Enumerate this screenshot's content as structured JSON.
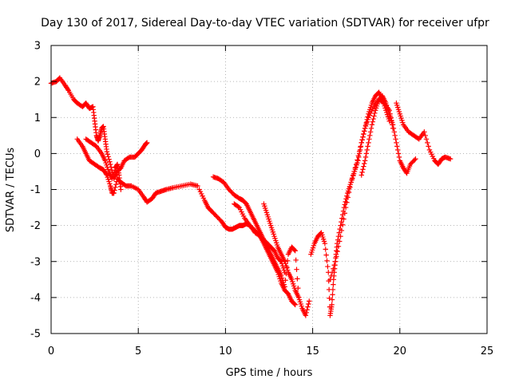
{
  "chart_data": {
    "type": "scatter",
    "title": "Day 130 of 2017, Sidereal Day-to-day VTEC variation (SDTVAR) for receiver ufpr",
    "xlabel": "GPS time / hours",
    "ylabel": "SDTVAR / TECUs",
    "xlim": [
      0,
      25
    ],
    "ylim": [
      -5,
      3
    ],
    "xticks": [
      "0",
      "5",
      "10",
      "15",
      "20",
      "25"
    ],
    "yticks": [
      "-5",
      "-4",
      "-3",
      "-2",
      "-1",
      "0",
      "1",
      "2",
      "3"
    ],
    "grid": true,
    "marker": "+",
    "color": "#ff0000",
    "series": [
      {
        "x": [
          0.0,
          0.3,
          0.5,
          0.8,
          1.0,
          1.3,
          1.5,
          1.8,
          2.0,
          2.2,
          2.4,
          2.5,
          2.6,
          2.7,
          2.8,
          2.9,
          3.0,
          3.1,
          3.2,
          3.4,
          3.6,
          3.8,
          4.0,
          4.2,
          4.5,
          4.8,
          5.0,
          5.2,
          5.4,
          5.5
        ],
        "y": [
          1.95,
          2.0,
          2.1,
          1.9,
          1.75,
          1.5,
          1.4,
          1.3,
          1.4,
          1.25,
          1.3,
          0.9,
          0.5,
          0.35,
          0.5,
          0.7,
          0.75,
          0.4,
          0.05,
          -0.3,
          -0.7,
          -0.5,
          -0.4,
          -0.2,
          -0.1,
          -0.1,
          0.0,
          0.1,
          0.25,
          0.3
        ]
      },
      {
        "x": [
          1.5,
          1.8,
          2.0,
          2.2,
          2.5,
          2.8,
          3.0,
          3.2,
          3.4,
          3.5,
          3.6,
          3.8,
          4.0,
          4.3,
          4.6,
          5.0,
          5.3,
          5.5,
          5.8,
          6.0,
          6.3,
          6.6,
          7.0,
          7.5,
          8.0,
          8.4
        ],
        "y": [
          0.4,
          0.2,
          0.0,
          -0.2,
          -0.3,
          -0.4,
          -0.45,
          -0.6,
          -0.9,
          -1.1,
          -1.1,
          -0.7,
          -0.8,
          -0.9,
          -0.9,
          -1.0,
          -1.2,
          -1.35,
          -1.25,
          -1.1,
          -1.05,
          -1.0,
          -0.95,
          -0.9,
          -0.85,
          -0.9
        ]
      },
      {
        "x": [
          2.0,
          2.3,
          2.6,
          2.9,
          3.1,
          3.3,
          3.5,
          3.7,
          3.8,
          3.9,
          4.0
        ],
        "y": [
          0.4,
          0.3,
          0.2,
          0.0,
          -0.2,
          -0.5,
          -0.7,
          -0.4,
          -0.3,
          -0.6,
          -1.0
        ]
      },
      {
        "x": [
          8.5,
          8.8,
          9.0,
          9.2,
          9.5,
          9.8,
          10.0,
          10.2,
          10.4,
          10.6,
          10.8,
          11.0,
          11.2,
          11.4,
          11.6,
          11.8,
          12.0,
          12.2,
          12.4,
          12.6,
          12.8,
          13.0,
          13.2,
          13.4,
          13.6,
          13.8,
          14.0
        ],
        "y": [
          -1.0,
          -1.3,
          -1.5,
          -1.6,
          -1.75,
          -1.9,
          -2.05,
          -2.1,
          -2.1,
          -2.05,
          -2.0,
          -2.0,
          -1.95,
          -2.0,
          -2.1,
          -2.2,
          -2.3,
          -2.5,
          -2.7,
          -2.9,
          -3.1,
          -3.3,
          -3.6,
          -3.8,
          -3.9,
          -4.1,
          -4.2
        ]
      },
      {
        "x": [
          9.3,
          9.6,
          9.9,
          10.2,
          10.5,
          10.8,
          11.0,
          11.2,
          11.4,
          11.6,
          11.8,
          12.0,
          12.2,
          12.4,
          12.6,
          12.8,
          13.0,
          13.2,
          13.4
        ],
        "y": [
          -0.65,
          -0.7,
          -0.8,
          -1.0,
          -1.15,
          -1.25,
          -1.3,
          -1.4,
          -1.6,
          -1.8,
          -2.0,
          -2.2,
          -2.4,
          -2.5,
          -2.6,
          -2.7,
          -2.9,
          -3.0,
          -3.3
        ]
      },
      {
        "x": [
          10.5,
          10.8,
          11.1,
          11.4,
          11.7,
          12.0,
          12.2,
          12.4,
          12.6,
          12.8,
          13.0,
          13.2,
          13.4,
          13.6,
          13.8,
          14.0,
          14.2,
          14.4,
          14.6,
          14.8
        ],
        "y": [
          -1.4,
          -1.5,
          -1.8,
          -2.0,
          -2.2,
          -2.3,
          -2.45,
          -2.6,
          -2.8,
          -3.0,
          -3.2,
          -3.4,
          -3.7,
          -2.8,
          -2.6,
          -2.7,
          -4.0,
          -4.3,
          -4.5,
          -4.1
        ]
      },
      {
        "x": [
          12.2,
          12.4,
          12.6,
          12.8,
          13.0,
          13.2,
          13.4,
          13.6,
          13.8,
          14.0,
          14.2
        ],
        "y": [
          -1.4,
          -1.7,
          -2.0,
          -2.3,
          -2.6,
          -2.8,
          -3.0,
          -3.3,
          -3.5,
          -3.8,
          -4.0
        ]
      },
      {
        "x": [
          14.9,
          15.1,
          15.3,
          15.5,
          15.7,
          15.9,
          16.0,
          16.1,
          16.2,
          16.3,
          16.4,
          16.6,
          16.8,
          17.0,
          17.2,
          17.4,
          17.6,
          17.8,
          18.0,
          18.2,
          18.4,
          18.6,
          18.8,
          19.0,
          19.2,
          19.4
        ],
        "y": [
          -2.8,
          -2.5,
          -2.3,
          -2.2,
          -2.5,
          -3.3,
          -4.5,
          -4.2,
          -3.5,
          -3.0,
          -2.5,
          -2.0,
          -1.5,
          -1.1,
          -0.8,
          -0.5,
          -0.2,
          0.3,
          0.7,
          1.1,
          1.4,
          1.6,
          1.7,
          1.5,
          1.2,
          0.9
        ]
      },
      {
        "x": [
          16.0,
          16.3,
          16.6,
          16.9,
          17.2,
          17.5,
          17.8,
          18.0,
          18.2,
          18.5,
          18.8,
          19.1,
          19.4,
          19.6
        ],
        "y": [
          -3.5,
          -3.0,
          -2.3,
          -1.5,
          -0.8,
          -0.3,
          0.3,
          0.7,
          1.0,
          1.3,
          1.5,
          1.4,
          1.2,
          0.7
        ]
      },
      {
        "x": [
          17.8,
          18.0,
          18.2,
          18.4,
          18.6,
          18.8,
          19.0,
          19.2,
          19.4,
          19.6,
          19.8,
          20.0,
          20.2,
          20.4,
          20.6,
          20.9
        ],
        "y": [
          -0.6,
          -0.2,
          0.3,
          0.8,
          1.2,
          1.5,
          1.6,
          1.4,
          1.1,
          0.8,
          0.3,
          -0.2,
          -0.4,
          -0.55,
          -0.3,
          -0.15
        ]
      },
      {
        "x": [
          19.8,
          20.0,
          20.2,
          20.5,
          20.8,
          21.1,
          21.4,
          21.7,
          22.0,
          22.2,
          22.4,
          22.6,
          22.9
        ],
        "y": [
          1.4,
          1.1,
          0.8,
          0.6,
          0.5,
          0.4,
          0.6,
          0.1,
          -0.2,
          -0.3,
          -0.15,
          -0.1,
          -0.15
        ]
      }
    ]
  }
}
